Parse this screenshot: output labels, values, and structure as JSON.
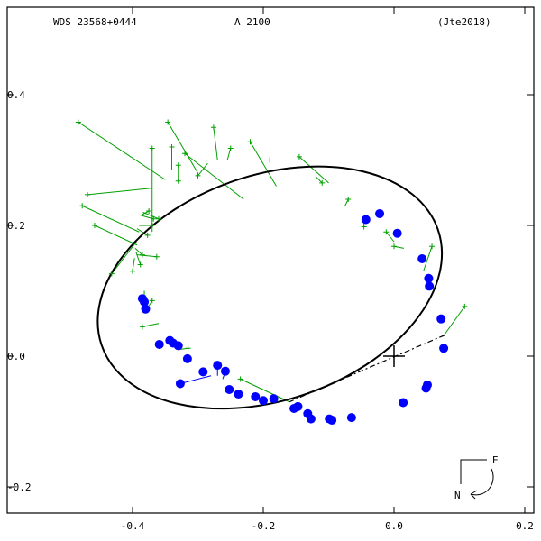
{
  "header": {
    "wds_id": "WDS 23568+0444",
    "component": "A  2100",
    "reference": "(Jte2018)"
  },
  "compass": {
    "east": "E",
    "north": "N"
  },
  "colors": {
    "orbit": "#000000",
    "frame": "#000000",
    "blue_points": "#0000ff",
    "green_points": "#00a000",
    "node_line": "#000000"
  },
  "chart_data": {
    "type": "scatter",
    "x_direction": "reversed",
    "xlim": [
      0.2,
      -0.6
    ],
    "ylim": [
      -0.28,
      0.52
    ],
    "xticks": [
      {
        "value": 0.2,
        "label": "0.2"
      },
      {
        "value": 0.0,
        "label": "0.0"
      },
      {
        "value": -0.2,
        "label": "-0.2"
      },
      {
        "value": -0.4,
        "label": "-0.4"
      }
    ],
    "yticks": [
      {
        "value": 0.4,
        "label": "0.4"
      },
      {
        "value": 0.2,
        "label": "0.2"
      },
      {
        "value": 0.0,
        "label": "0.0"
      },
      {
        "value": -0.2,
        "label": "-0.2"
      }
    ],
    "primary": {
      "x": 0.0,
      "y": 0.0
    },
    "orbit_ellipse": {
      "center": [
        -0.19,
        0.105
      ],
      "semi_major": 0.272,
      "semi_minor": 0.172,
      "rotation_deg": -19
    },
    "node_line": {
      "from": [
        0.077,
        0.032
      ],
      "to": [
        -0.165,
        -0.072
      ]
    },
    "blue_observations": [
      {
        "obs": [
          0.043,
          0.149
        ],
        "fit": [
          0.043,
          0.149
        ]
      },
      {
        "obs": [
          0.053,
          0.119
        ],
        "fit": [
          0.053,
          0.119
        ]
      },
      {
        "obs": [
          0.054,
          0.107
        ],
        "fit": [
          0.054,
          0.107
        ]
      },
      {
        "obs": [
          0.072,
          0.057
        ],
        "fit": [
          0.072,
          0.057
        ]
      },
      {
        "obs": [
          0.076,
          0.012
        ],
        "fit": [
          0.076,
          0.012
        ]
      },
      {
        "obs": [
          0.051,
          -0.044
        ],
        "fit": [
          0.051,
          -0.044
        ]
      },
      {
        "obs": [
          0.049,
          -0.049
        ],
        "fit": [
          0.049,
          -0.049
        ]
      },
      {
        "obs": [
          0.014,
          -0.071
        ],
        "fit": [
          0.014,
          -0.071
        ]
      },
      {
        "obs": [
          -0.065,
          -0.094
        ],
        "fit": [
          -0.065,
          -0.094
        ]
      },
      {
        "obs": [
          -0.095,
          -0.098
        ],
        "fit": [
          -0.095,
          -0.098
        ]
      },
      {
        "obs": [
          -0.099,
          -0.096
        ],
        "fit": [
          -0.099,
          -0.096
        ]
      },
      {
        "obs": [
          -0.127,
          -0.096
        ],
        "fit": [
          -0.127,
          -0.096
        ]
      },
      {
        "obs": [
          -0.132,
          -0.088
        ],
        "fit": [
          -0.132,
          -0.088
        ]
      },
      {
        "obs": [
          -0.147,
          -0.077
        ],
        "fit": [
          -0.147,
          -0.077
        ]
      },
      {
        "obs": [
          -0.153,
          -0.08
        ],
        "fit": [
          -0.153,
          -0.08
        ]
      },
      {
        "obs": [
          -0.184,
          -0.065
        ],
        "fit": [
          -0.184,
          -0.065
        ]
      },
      {
        "obs": [
          -0.2,
          -0.068
        ],
        "fit": [
          -0.2,
          -0.068
        ]
      },
      {
        "obs": [
          -0.212,
          -0.062
        ],
        "fit": [
          -0.212,
          -0.062
        ]
      },
      {
        "obs": [
          -0.238,
          -0.058
        ],
        "fit": [
          -0.238,
          -0.058
        ]
      },
      {
        "obs": [
          -0.252,
          -0.051
        ],
        "fit": [
          -0.252,
          -0.051
        ]
      },
      {
        "obs": [
          -0.258,
          -0.023
        ],
        "fit": [
          -0.262,
          -0.035
        ]
      },
      {
        "obs": [
          -0.27,
          -0.014
        ],
        "fit": [
          -0.27,
          -0.03
        ]
      },
      {
        "obs": [
          -0.292,
          -0.024
        ],
        "fit": [
          -0.292,
          -0.024
        ]
      },
      {
        "obs": [
          -0.316,
          -0.004
        ],
        "fit": [
          -0.316,
          -0.004
        ]
      },
      {
        "obs": [
          -0.33,
          0.016
        ],
        "fit": [
          -0.33,
          0.016
        ]
      },
      {
        "obs": [
          -0.338,
          0.02
        ],
        "fit": [
          -0.338,
          0.02
        ]
      },
      {
        "obs": [
          -0.343,
          0.024
        ],
        "fit": [
          -0.343,
          0.024
        ]
      },
      {
        "obs": [
          -0.359,
          0.018
        ],
        "fit": [
          -0.359,
          0.018
        ]
      },
      {
        "obs": [
          -0.327,
          -0.042
        ],
        "fit": [
          -0.28,
          -0.03
        ]
      },
      {
        "obs": [
          -0.38,
          0.072
        ],
        "fit": [
          -0.38,
          0.072
        ]
      },
      {
        "obs": [
          -0.382,
          0.083
        ],
        "fit": [
          -0.382,
          0.083
        ]
      },
      {
        "obs": [
          -0.385,
          0.088
        ],
        "fit": [
          -0.385,
          0.088
        ]
      },
      {
        "obs": [
          -0.043,
          0.209
        ],
        "fit": [
          -0.043,
          0.209
        ]
      },
      {
        "obs": [
          -0.022,
          0.218
        ],
        "fit": [
          -0.022,
          0.218
        ]
      },
      {
        "obs": [
          0.005,
          0.188
        ],
        "fit": [
          0.005,
          0.188
        ]
      }
    ],
    "green_observations": [
      {
        "obs": [
          -0.483,
          0.358
        ],
        "fit": [
          -0.35,
          0.27
        ]
      },
      {
        "obs": [
          -0.469,
          0.247
        ],
        "fit": [
          -0.37,
          0.257
        ]
      },
      {
        "obs": [
          -0.477,
          0.23
        ],
        "fit": [
          -0.39,
          0.19
        ]
      },
      {
        "obs": [
          -0.458,
          0.2
        ],
        "fit": [
          -0.393,
          0.17
        ]
      },
      {
        "obs": [
          -0.432,
          0.126
        ],
        "fit": [
          -0.394,
          0.175
        ]
      },
      {
        "obs": [
          -0.388,
          0.14
        ],
        "fit": [
          -0.395,
          0.16
        ]
      },
      {
        "obs": [
          -0.385,
          0.155
        ],
        "fit": [
          -0.396,
          0.165
        ]
      },
      {
        "obs": [
          -0.4,
          0.13
        ],
        "fit": [
          -0.397,
          0.15
        ]
      },
      {
        "obs": [
          -0.363,
          0.152
        ],
        "fit": [
          -0.393,
          0.155
        ]
      },
      {
        "obs": [
          -0.377,
          0.185
        ],
        "fit": [
          -0.393,
          0.195
        ]
      },
      {
        "obs": [
          -0.37,
          0.2
        ],
        "fit": [
          -0.39,
          0.2
        ]
      },
      {
        "obs": [
          -0.375,
          0.222
        ],
        "fit": [
          -0.388,
          0.215
        ]
      },
      {
        "obs": [
          -0.368,
          0.21
        ],
        "fit": [
          -0.386,
          0.215
        ]
      },
      {
        "obs": [
          -0.36,
          0.21
        ],
        "fit": [
          -0.384,
          0.22
        ]
      },
      {
        "obs": [
          -0.37,
          0.318
        ],
        "fit": [
          -0.37,
          0.19
        ]
      },
      {
        "obs": [
          -0.346,
          0.358
        ],
        "fit": [
          -0.3,
          0.28
        ]
      },
      {
        "obs": [
          -0.34,
          0.32
        ],
        "fit": [
          -0.34,
          0.285
        ]
      },
      {
        "obs": [
          -0.33,
          0.292
        ],
        "fit": [
          -0.33,
          0.29
        ]
      },
      {
        "obs": [
          -0.33,
          0.268
        ],
        "fit": [
          -0.33,
          0.29
        ]
      },
      {
        "obs": [
          -0.32,
          0.31
        ],
        "fit": [
          -0.23,
          0.24
        ]
      },
      {
        "obs": [
          -0.3,
          0.276
        ],
        "fit": [
          -0.285,
          0.295
        ]
      },
      {
        "obs": [
          -0.276,
          0.35
        ],
        "fit": [
          -0.27,
          0.3
        ]
      },
      {
        "obs": [
          -0.25,
          0.318
        ],
        "fit": [
          -0.255,
          0.3
        ]
      },
      {
        "obs": [
          -0.22,
          0.328
        ],
        "fit": [
          -0.18,
          0.26
        ]
      },
      {
        "obs": [
          -0.19,
          0.3
        ],
        "fit": [
          -0.22,
          0.3
        ]
      },
      {
        "obs": [
          -0.145,
          0.305
        ],
        "fit": [
          -0.1,
          0.265
        ]
      },
      {
        "obs": [
          -0.11,
          0.265
        ],
        "fit": [
          -0.12,
          0.275
        ]
      },
      {
        "obs": [
          -0.07,
          0.24
        ],
        "fit": [
          -0.075,
          0.23
        ]
      },
      {
        "obs": [
          -0.046,
          0.198
        ],
        "fit": [
          -0.046,
          0.21
        ]
      },
      {
        "obs": [
          -0.012,
          0.19
        ],
        "fit": [
          0.0,
          0.175
        ]
      },
      {
        "obs": [
          0.0,
          0.168
        ],
        "fit": [
          0.015,
          0.165
        ]
      },
      {
        "obs": [
          0.058,
          0.168
        ],
        "fit": [
          0.045,
          0.13
        ]
      },
      {
        "obs": [
          0.108,
          0.076
        ],
        "fit": [
          0.075,
          0.03
        ]
      },
      {
        "obs": [
          -0.382,
          0.09
        ],
        "fit": [
          -0.382,
          0.1
        ]
      },
      {
        "obs": [
          -0.37,
          0.085
        ],
        "fit": [
          -0.376,
          0.075
        ]
      },
      {
        "obs": [
          -0.385,
          0.045
        ],
        "fit": [
          -0.36,
          0.05
        ]
      },
      {
        "obs": [
          -0.315,
          0.012
        ],
        "fit": [
          -0.33,
          0.01
        ]
      },
      {
        "obs": [
          -0.235,
          -0.035
        ],
        "fit": [
          -0.16,
          -0.07
        ]
      },
      {
        "obs": [
          -0.18,
          -0.065
        ],
        "fit": [
          -0.185,
          -0.065
        ]
      }
    ]
  }
}
